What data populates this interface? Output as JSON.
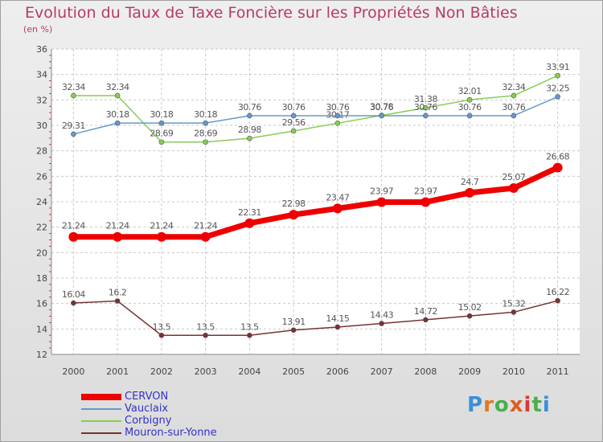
{
  "title": "Evolution du Taux de Taxe Foncière sur les Propriétés Non Bâties",
  "unit": "(en %)",
  "brand": "Proxiti",
  "chart_data": {
    "type": "line",
    "x": [
      "2000",
      "2001",
      "2002",
      "2003",
      "2004",
      "2005",
      "2006",
      "2007",
      "2008",
      "2009",
      "2010",
      "2011"
    ],
    "ylim": [
      12,
      36
    ],
    "yticks": [
      "12",
      "14",
      "16",
      "18",
      "20",
      "22",
      "24",
      "26",
      "28",
      "30",
      "32",
      "34",
      "36"
    ],
    "grid": true,
    "legend_position": "bottom-left",
    "series": [
      {
        "name": "CERVON",
        "color": "#ee0000",
        "values": [
          21.24,
          21.24,
          21.24,
          21.24,
          22.31,
          22.98,
          23.47,
          23.97,
          23.97,
          24.7,
          25.07,
          26.68
        ],
        "labels": [
          "21.24",
          "21.24",
          "21.24",
          "21.24",
          "22.31",
          "22.98",
          "23.47",
          "23.97",
          "23.97",
          "24.7",
          "25.07",
          "26.68"
        ]
      },
      {
        "name": "Vauclaix",
        "color": "#6699cc",
        "values": [
          29.31,
          30.18,
          30.18,
          30.18,
          30.76,
          30.76,
          30.76,
          30.76,
          30.76,
          30.76,
          30.76,
          32.25
        ],
        "labels": [
          "29.31",
          "30.18",
          "30.18",
          "30.18",
          "30.76",
          "30.76",
          "30.76",
          "30.76",
          "30.76",
          "30.76",
          "30.76",
          "32.25"
        ]
      },
      {
        "name": "Corbigny",
        "color": "#88cc55",
        "values": [
          32.34,
          32.34,
          28.69,
          28.69,
          28.98,
          29.56,
          30.17,
          30.78,
          31.38,
          32.01,
          32.34,
          33.91
        ],
        "labels": [
          "32.34",
          "32.34",
          "28.69",
          "28.69",
          "28.98",
          "29.56",
          "30.17",
          "30.78",
          "31.38",
          "32.01",
          "32.34",
          "33.91"
        ]
      },
      {
        "name": "Mouron-sur-Yonne",
        "color": "#773333",
        "values": [
          16.04,
          16.2,
          13.5,
          13.5,
          13.5,
          13.91,
          14.15,
          14.43,
          14.72,
          15.02,
          15.32,
          16.22
        ],
        "labels": [
          "16.04",
          "16.2",
          "13.5",
          "13.5",
          "13.5",
          "13.91",
          "14.15",
          "14.43",
          "14.72",
          "15.02",
          "15.32",
          "16.22"
        ]
      }
    ]
  }
}
